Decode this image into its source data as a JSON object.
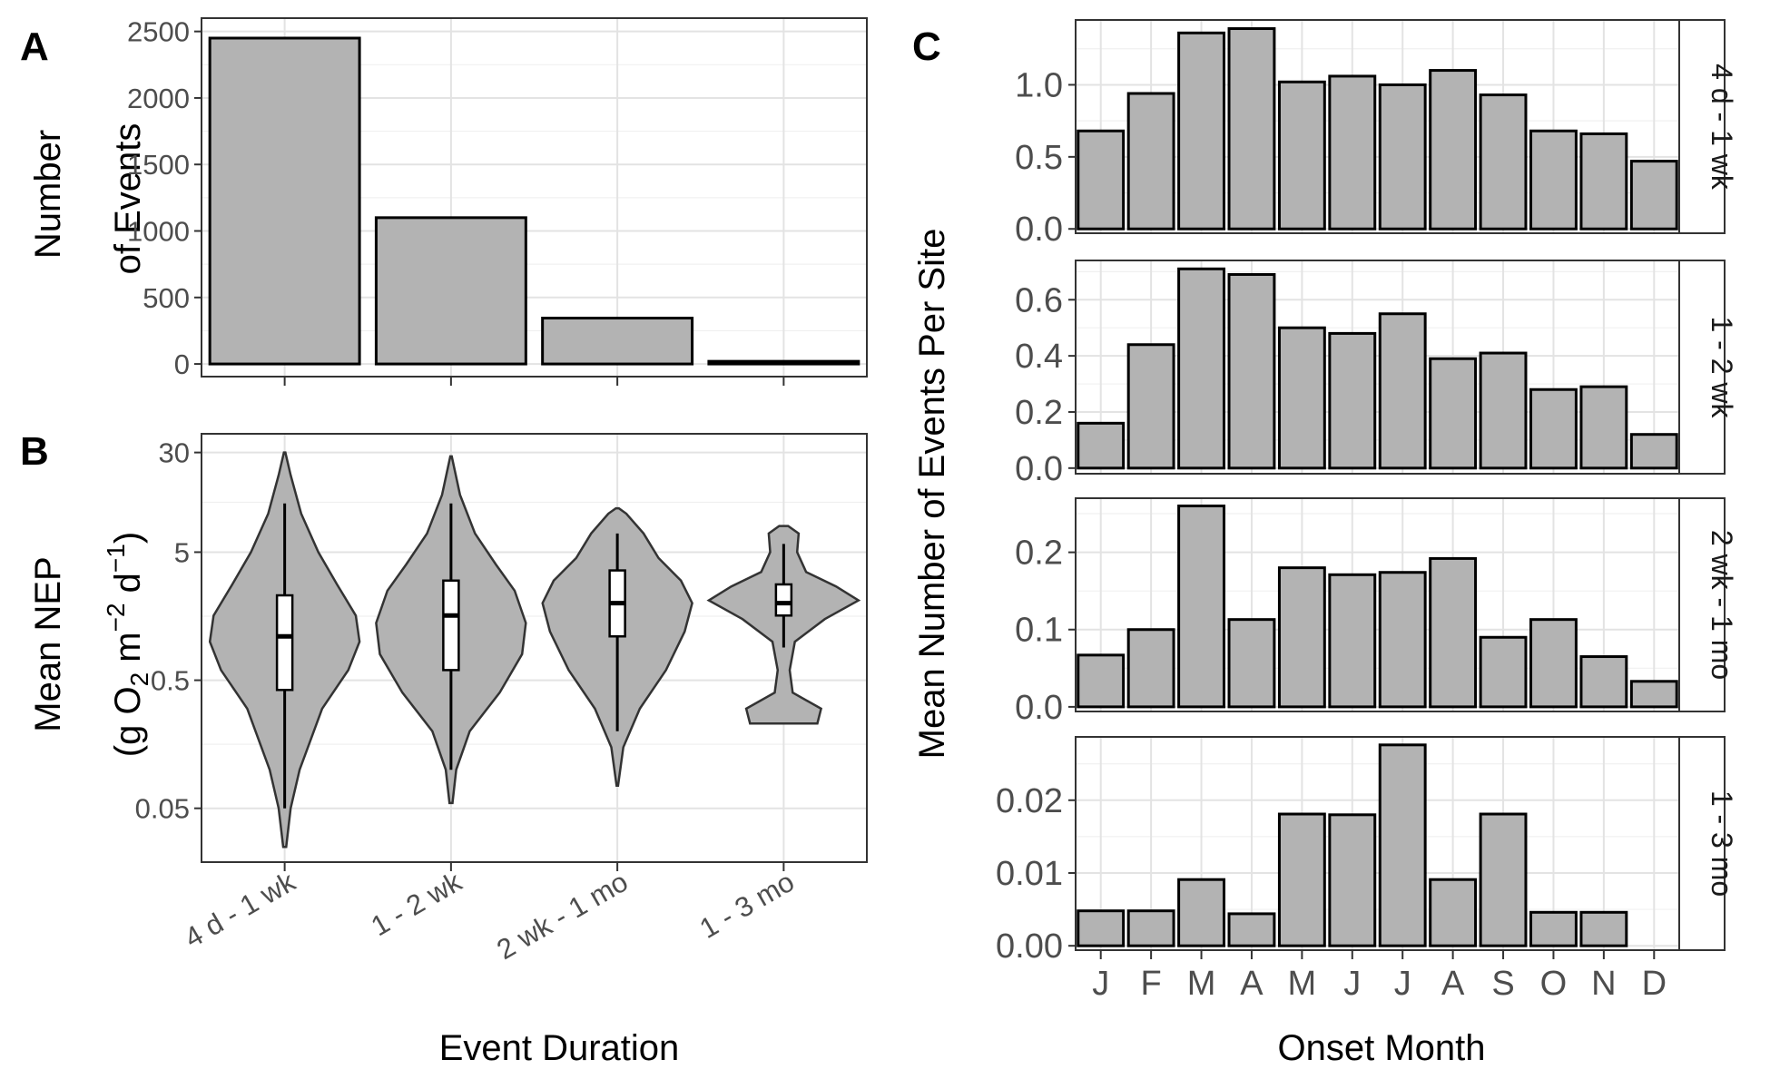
{
  "panels": {
    "a": "A",
    "b": "B",
    "c": "C"
  },
  "axis_titles": {
    "a_y_line1": "Number",
    "a_y_line2": "of Events",
    "b_y_line1": "Mean NEP",
    "b_y_line2_part1": "(g O",
    "b_y_line2_sub": "2",
    "b_y_line2_part2": " m",
    "b_y_line2_sup1": "−2",
    "b_y_line2_part3": " d",
    "b_y_line2_sup2": "−1",
    "b_y_line2_part4": ")",
    "b_x": "Event Duration",
    "c_y": "Mean Number of Events Per Site",
    "c_x": "Onset Month"
  },
  "chart_data": [
    {
      "id": "A",
      "type": "bar",
      "categories": [
        "4 d - 1 wk",
        "1 - 2 wk",
        "2 wk - 1 mo",
        "1 - 3 mo"
      ],
      "values": [
        2450,
        1100,
        345,
        20
      ],
      "ylabel": "Number of Events",
      "ylim": [
        -95,
        2600
      ],
      "yticks": [
        0,
        500,
        1000,
        1500,
        2000,
        2500
      ],
      "grid": true
    },
    {
      "id": "B",
      "type": "violin",
      "scale": "log10",
      "categories": [
        "4 d - 1 wk",
        "1 - 2 wk",
        "2 wk - 1 mo",
        "1 - 3 mo"
      ],
      "ylabel": "Mean NEP (g O2 m-2 d-1)",
      "xlabel": "Event Duration",
      "ylim": [
        0.019,
        42
      ],
      "yticks": [
        0.05,
        0.5,
        5,
        30
      ],
      "ytick_labels": [
        "0.05",
        "0.5",
        "5",
        "30"
      ],
      "violins": [
        {
          "min": 0.025,
          "max": 30,
          "q1": 0.42,
          "median": 1.1,
          "q3": 2.3,
          "whisker_low": 0.05,
          "whisker_high": 12,
          "profile": [
            [
              0.025,
              0.02
            ],
            [
              0.05,
              0.08
            ],
            [
              0.1,
              0.2
            ],
            [
              0.3,
              0.5
            ],
            [
              0.6,
              0.85
            ],
            [
              1.0,
              1.0
            ],
            [
              1.6,
              0.95
            ],
            [
              2.8,
              0.7
            ],
            [
              5,
              0.45
            ],
            [
              10,
              0.22
            ],
            [
              20,
              0.08
            ],
            [
              30,
              0.01
            ]
          ]
        },
        {
          "min": 0.055,
          "max": 28,
          "q1": 0.6,
          "median": 1.6,
          "q3": 3.0,
          "whisker_low": 0.1,
          "whisker_high": 12,
          "profile": [
            [
              0.055,
              0.02
            ],
            [
              0.1,
              0.07
            ],
            [
              0.2,
              0.25
            ],
            [
              0.4,
              0.65
            ],
            [
              0.8,
              0.95
            ],
            [
              1.4,
              1.0
            ],
            [
              2.5,
              0.85
            ],
            [
              4,
              0.6
            ],
            [
              7,
              0.32
            ],
            [
              14,
              0.12
            ],
            [
              28,
              0.01
            ]
          ]
        },
        {
          "min": 0.075,
          "max": 11,
          "q1": 1.1,
          "median": 2.0,
          "q3": 3.6,
          "whisker_low": 0.2,
          "whisker_high": 7,
          "profile": [
            [
              0.075,
              0.01
            ],
            [
              0.15,
              0.08
            ],
            [
              0.3,
              0.3
            ],
            [
              0.6,
              0.65
            ],
            [
              1.2,
              0.9
            ],
            [
              2.0,
              1.0
            ],
            [
              3.0,
              0.85
            ],
            [
              4.5,
              0.55
            ],
            [
              7,
              0.35
            ],
            [
              10,
              0.12
            ],
            [
              11,
              0.02
            ]
          ]
        },
        {
          "min": 0.23,
          "max": 8,
          "q1": 1.6,
          "median": 2.0,
          "q3": 2.8,
          "whisker_low": 0.9,
          "whisker_high": 5.8,
          "profile": [
            [
              0.23,
              0.45
            ],
            [
              0.3,
              0.5
            ],
            [
              0.4,
              0.12
            ],
            [
              0.6,
              0.08
            ],
            [
              1.0,
              0.15
            ],
            [
              1.5,
              0.55
            ],
            [
              2.1,
              1.0
            ],
            [
              2.7,
              0.7
            ],
            [
              3.5,
              0.3
            ],
            [
              5,
              0.18
            ],
            [
              7,
              0.2
            ],
            [
              8,
              0.06
            ]
          ]
        }
      ]
    },
    {
      "id": "C",
      "type": "bar",
      "facets": true,
      "categories": [
        "J",
        "F",
        "M",
        "A",
        "M",
        "J",
        "J",
        "A",
        "S",
        "O",
        "N",
        "D"
      ],
      "xlabel": "Onset Month",
      "ylabel": "Mean Number of Events Per Site",
      "series": [
        {
          "name": "4 d - 1 wk",
          "values": [
            0.68,
            0.94,
            1.36,
            1.39,
            1.02,
            1.06,
            1.0,
            1.1,
            0.93,
            0.68,
            0.66,
            0.47
          ],
          "ylim": [
            -0.03,
            1.45
          ],
          "yticks": [
            0.0,
            0.5,
            1.0
          ],
          "ytick_labels": [
            "0.0",
            "0.5",
            "1.0"
          ]
        },
        {
          "name": "1 - 2 wk",
          "values": [
            0.16,
            0.44,
            0.71,
            0.69,
            0.5,
            0.48,
            0.55,
            0.39,
            0.41,
            0.28,
            0.29,
            0.12
          ],
          "ylim": [
            -0.02,
            0.74
          ],
          "yticks": [
            0.0,
            0.2,
            0.4,
            0.6
          ],
          "ytick_labels": [
            "0.0",
            "0.2",
            "0.4",
            "0.6"
          ]
        },
        {
          "name": "2 wk - 1 mo",
          "values": [
            0.067,
            0.1,
            0.26,
            0.113,
            0.18,
            0.171,
            0.174,
            0.192,
            0.09,
            0.113,
            0.065,
            0.033
          ],
          "ylim": [
            -0.006,
            0.27
          ],
          "yticks": [
            0.0,
            0.1,
            0.2
          ],
          "ytick_labels": [
            "0.0",
            "0.1",
            "0.2"
          ]
        },
        {
          "name": "1 - 3 mo",
          "values": [
            0.0048,
            0.0048,
            0.0091,
            0.0044,
            0.0181,
            0.018,
            0.0276,
            0.0091,
            0.0181,
            0.0046,
            0.0046,
            0
          ],
          "ylim": [
            -0.0006,
            0.0287
          ],
          "yticks": [
            0.0,
            0.01,
            0.02
          ],
          "ytick_labels": [
            "0.00",
            "0.01",
            "0.02"
          ]
        }
      ]
    }
  ]
}
